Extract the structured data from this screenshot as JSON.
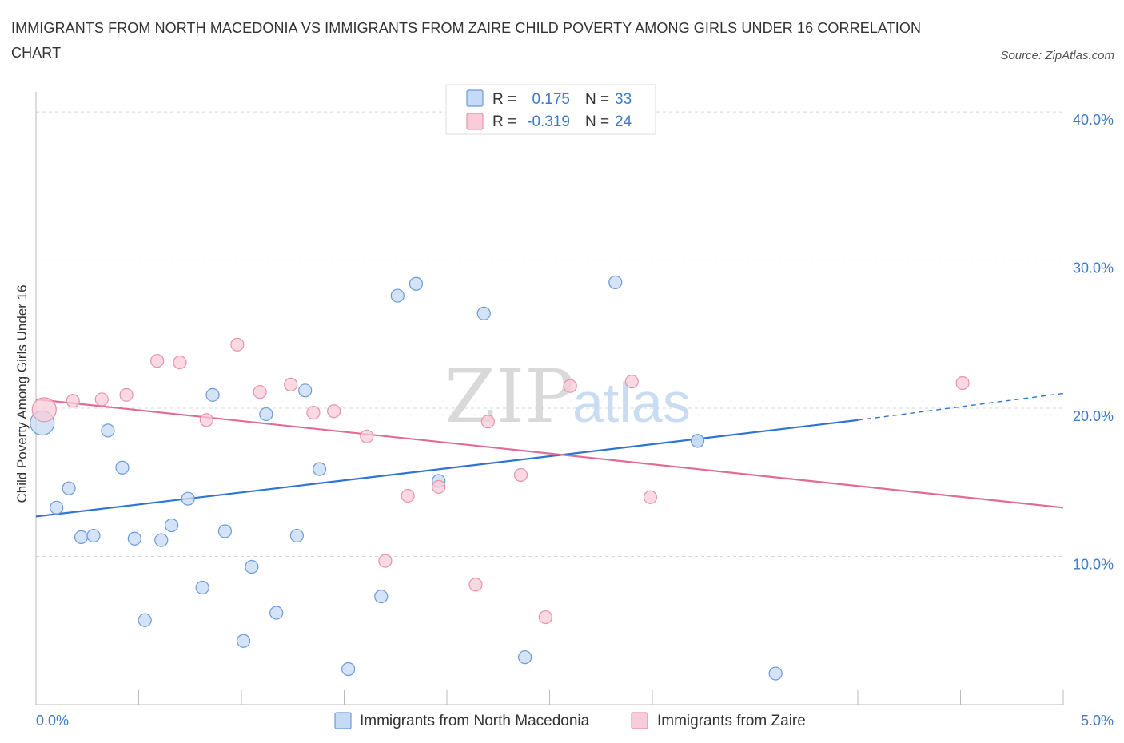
{
  "header": {
    "title": "IMMIGRANTS FROM NORTH MACEDONIA VS IMMIGRANTS FROM ZAIRE CHILD POVERTY AMONG GIRLS UNDER 16 CORRELATION CHART",
    "source": "Source: ZipAtlas.com"
  },
  "watermark": {
    "zip": "ZIP",
    "atlas": "atlas"
  },
  "legend": {
    "r_label": "R =",
    "n_label": "N =",
    "series1_r": "0.175",
    "series1_n": "33",
    "series2_r": "-0.319",
    "series2_n": "24"
  },
  "colors": {
    "series1_fill": "#c5daf5",
    "series1_stroke": "#6b9bd8",
    "series1_line": "#2f74cf",
    "series2_fill": "#f8ccd8",
    "series2_stroke": "#e892ad",
    "series2_line": "#e06c94",
    "grid": "#d8d8d8",
    "tick_text": "#3d7ac8"
  },
  "chart_data": {
    "type": "scatter",
    "title": "IMMIGRANTS FROM NORTH MACEDONIA VS IMMIGRANTS FROM ZAIRE CHILD POVERTY AMONG GIRLS UNDER 16 CORRELATION CHART",
    "xlabel": "",
    "ylabel": "Child Poverty Among Girls Under 16",
    "xlim": [
      0,
      5
    ],
    "ylim": [
      0,
      42
    ],
    "x_tick_labels": [
      "0.0%",
      "5.0%"
    ],
    "y_ticks": [
      10,
      20,
      30,
      40
    ],
    "y_tick_labels": [
      "10.0%",
      "20.0%",
      "30.0%",
      "40.0%"
    ],
    "grid": true,
    "legend_position": "top-center",
    "series": [
      {
        "name": "Immigrants from North Macedonia",
        "r": 0.175,
        "n": 33,
        "points": [
          {
            "x": 0.03,
            "y": 19.0,
            "big": true
          },
          {
            "x": 0.1,
            "y": 13.3
          },
          {
            "x": 0.16,
            "y": 14.6
          },
          {
            "x": 0.22,
            "y": 11.3
          },
          {
            "x": 0.28,
            "y": 11.4
          },
          {
            "x": 0.35,
            "y": 18.5
          },
          {
            "x": 0.42,
            "y": 16.0
          },
          {
            "x": 0.48,
            "y": 11.2
          },
          {
            "x": 0.53,
            "y": 5.7
          },
          {
            "x": 0.61,
            "y": 11.1
          },
          {
            "x": 0.66,
            "y": 12.1
          },
          {
            "x": 0.74,
            "y": 13.9
          },
          {
            "x": 0.81,
            "y": 7.9
          },
          {
            "x": 0.86,
            "y": 20.9
          },
          {
            "x": 0.92,
            "y": 11.7
          },
          {
            "x": 1.01,
            "y": 4.3
          },
          {
            "x": 1.05,
            "y": 9.3
          },
          {
            "x": 1.12,
            "y": 19.6
          },
          {
            "x": 1.17,
            "y": 6.2
          },
          {
            "x": 1.27,
            "y": 11.4
          },
          {
            "x": 1.31,
            "y": 21.2
          },
          {
            "x": 1.38,
            "y": 15.9
          },
          {
            "x": 1.52,
            "y": 2.4
          },
          {
            "x": 1.68,
            "y": 7.3
          },
          {
            "x": 1.76,
            "y": 27.6
          },
          {
            "x": 1.85,
            "y": 28.4
          },
          {
            "x": 1.96,
            "y": 15.1
          },
          {
            "x": 2.18,
            "y": 26.4
          },
          {
            "x": 2.38,
            "y": 3.2
          },
          {
            "x": 2.82,
            "y": 28.5
          },
          {
            "x": 3.22,
            "y": 17.8
          },
          {
            "x": 3.22,
            "y": 17.8
          },
          {
            "x": 3.6,
            "y": 2.1
          }
        ],
        "trend": {
          "x0": 0,
          "y0": 12.7,
          "x1": 4.0,
          "y1": 19.2,
          "dash_to_x": 5.0,
          "dash_to_y": 21.0
        }
      },
      {
        "name": "Immigrants from Zaire",
        "r": -0.319,
        "n": 24,
        "points": [
          {
            "x": 0.04,
            "y": 19.9,
            "big": true
          },
          {
            "x": 0.18,
            "y": 20.5
          },
          {
            "x": 0.32,
            "y": 20.6
          },
          {
            "x": 0.44,
            "y": 20.9
          },
          {
            "x": 0.59,
            "y": 23.2
          },
          {
            "x": 0.7,
            "y": 23.1
          },
          {
            "x": 0.83,
            "y": 19.2
          },
          {
            "x": 0.98,
            "y": 24.3
          },
          {
            "x": 1.09,
            "y": 21.1
          },
          {
            "x": 1.24,
            "y": 21.6
          },
          {
            "x": 1.35,
            "y": 19.7
          },
          {
            "x": 1.45,
            "y": 19.8
          },
          {
            "x": 1.61,
            "y": 18.1
          },
          {
            "x": 1.7,
            "y": 9.7
          },
          {
            "x": 1.81,
            "y": 14.1
          },
          {
            "x": 1.96,
            "y": 14.7
          },
          {
            "x": 2.14,
            "y": 8.1
          },
          {
            "x": 2.2,
            "y": 19.1
          },
          {
            "x": 2.36,
            "y": 15.5
          },
          {
            "x": 2.48,
            "y": 5.9
          },
          {
            "x": 2.6,
            "y": 21.5
          },
          {
            "x": 2.9,
            "y": 21.8
          },
          {
            "x": 2.99,
            "y": 14.0
          },
          {
            "x": 4.51,
            "y": 21.7
          }
        ],
        "trend": {
          "x0": 0,
          "y0": 20.6,
          "x1": 5.0,
          "y1": 13.3
        }
      }
    ]
  },
  "bottom_legend": {
    "series1_label": "Immigrants from North Macedonia",
    "series2_label": "Immigrants from Zaire"
  }
}
